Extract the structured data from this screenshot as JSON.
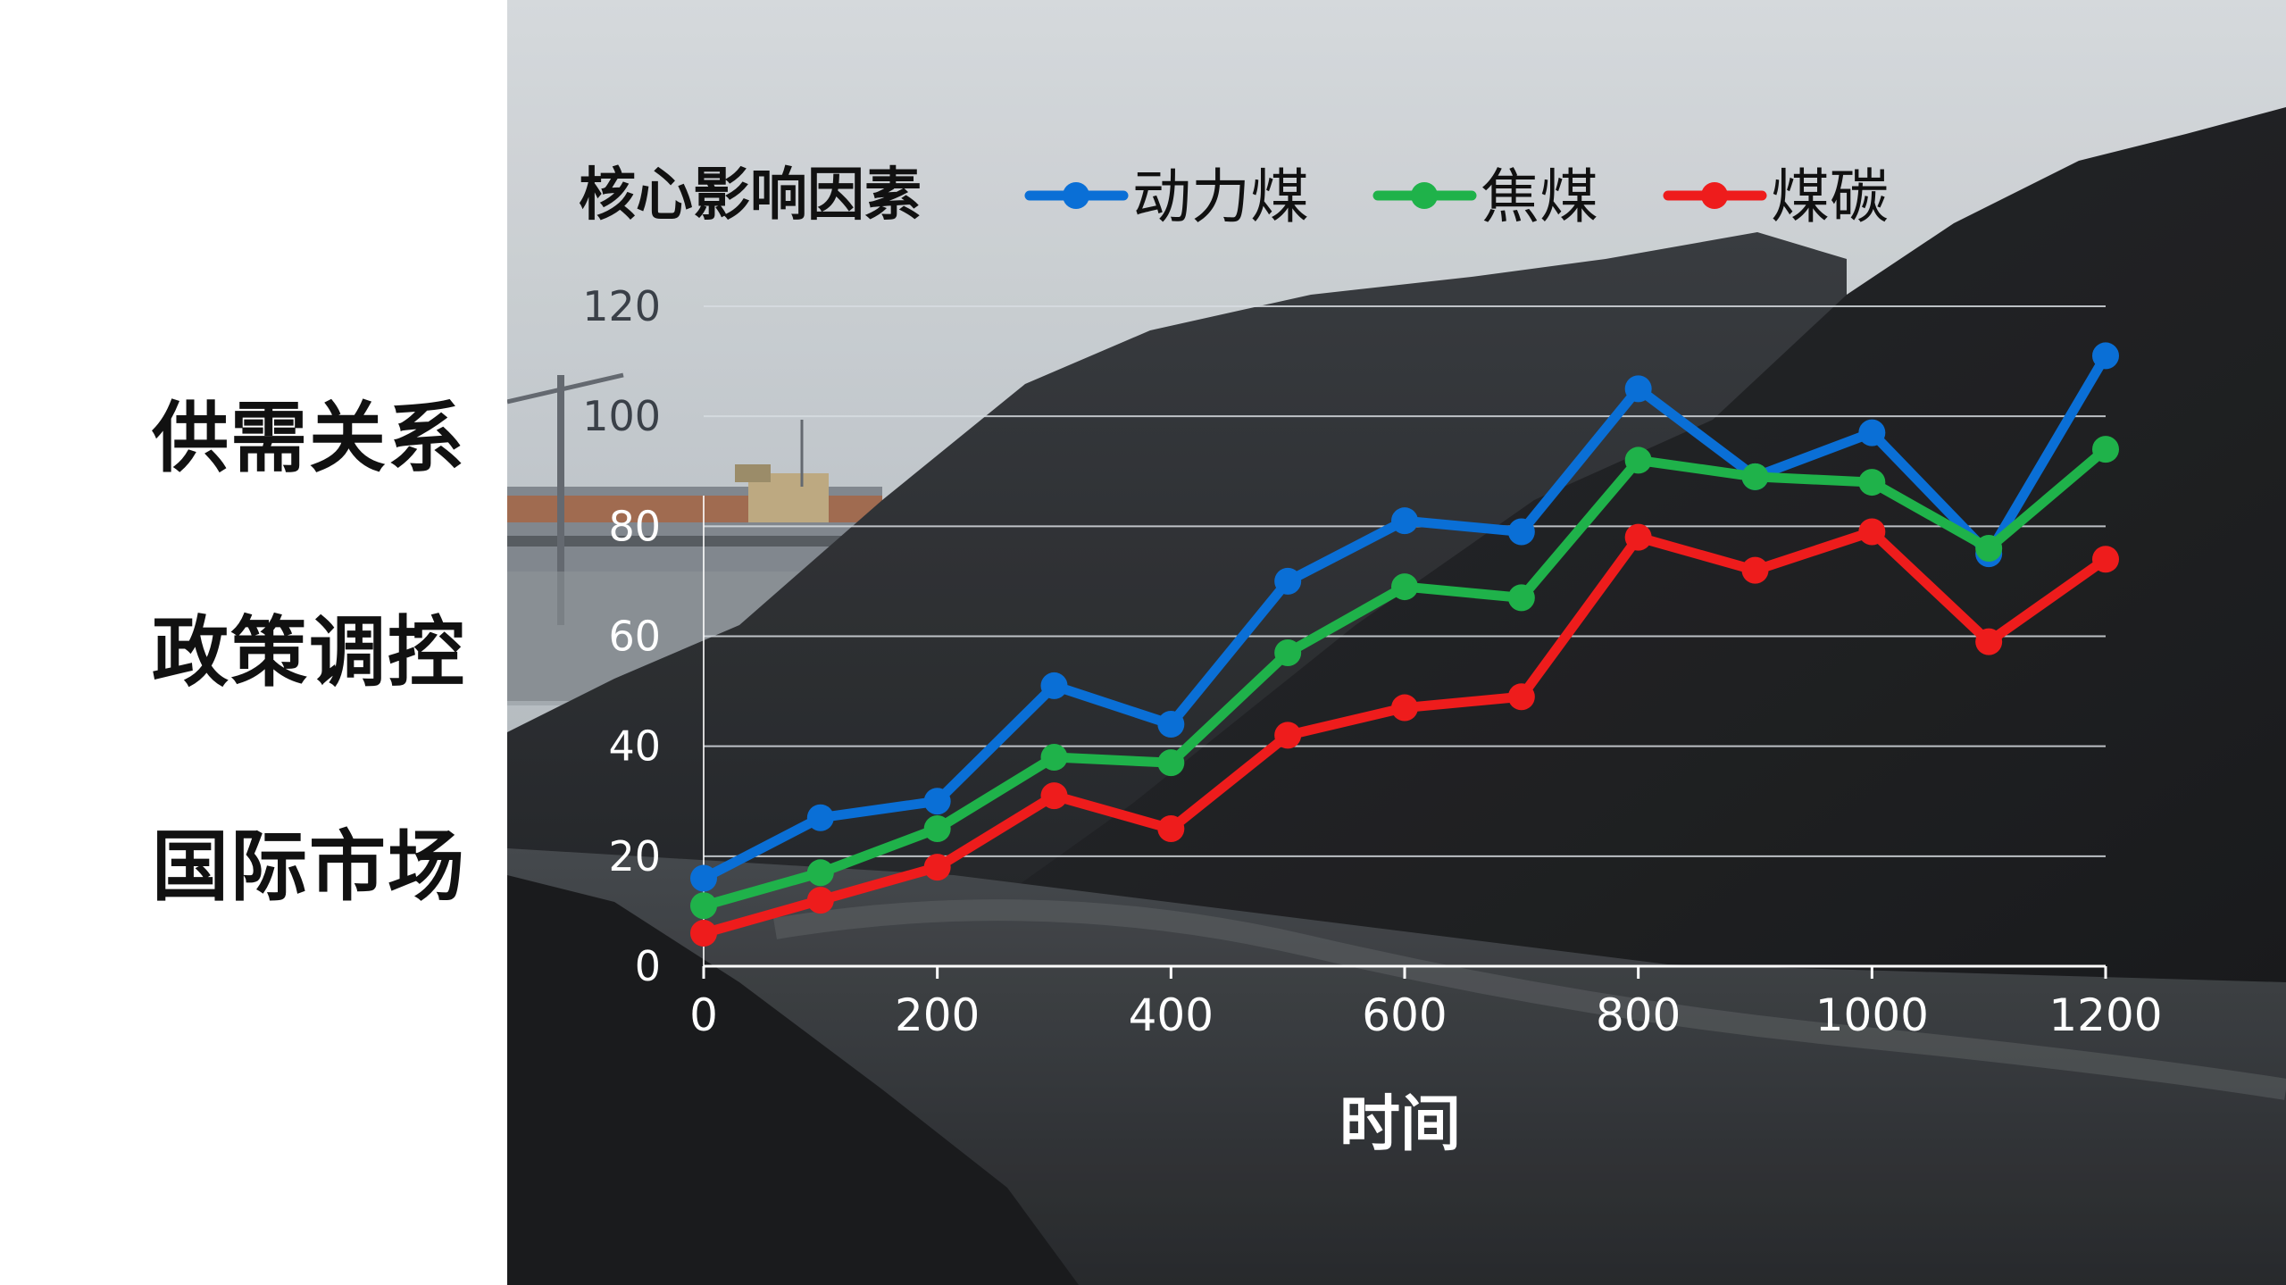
{
  "factors": [
    "供需关系",
    "政策调控",
    "国际市场"
  ],
  "colors": {
    "series_blue": "#0a6fd6",
    "series_green": "#1fb24a",
    "series_red": "#ee1c1c",
    "grid": "#d8dde2",
    "axis_text": "#ffffff",
    "y_tick_text_upper": "#3a4048"
  },
  "chart_data": {
    "type": "line",
    "title": "核心影响因素",
    "xlabel": "时间",
    "ylabel": "",
    "x": [
      0,
      100,
      200,
      300,
      400,
      500,
      600,
      700,
      800,
      900,
      1000,
      1100,
      1200
    ],
    "x_ticks": [
      "0",
      "200",
      "400",
      "600",
      "800",
      "1000",
      "1200"
    ],
    "x_tick_values": [
      0,
      200,
      400,
      600,
      800,
      1000,
      1200
    ],
    "y_ticks": [
      "0",
      "20",
      "40",
      "60",
      "80",
      "100",
      "120"
    ],
    "y_tick_values": [
      0,
      20,
      40,
      60,
      80,
      100,
      120
    ],
    "xlim": [
      0,
      1200
    ],
    "ylim": [
      0,
      120
    ],
    "grid": true,
    "legend_position": "top",
    "series": [
      {
        "name": "动力煤",
        "color": "#0a6fd6",
        "values": [
          16,
          27,
          30,
          51,
          44,
          70,
          81,
          79,
          105,
          89,
          97,
          75,
          111
        ]
      },
      {
        "name": "焦煤",
        "color": "#1fb24a",
        "values": [
          11,
          17,
          25,
          38,
          37,
          57,
          69,
          67,
          92,
          89,
          88,
          76,
          94
        ]
      },
      {
        "name": "煤碳",
        "color": "#ee1c1c",
        "values": [
          6,
          12,
          18,
          31,
          25,
          42,
          47,
          49,
          78,
          72,
          79,
          59,
          74
        ]
      }
    ]
  }
}
